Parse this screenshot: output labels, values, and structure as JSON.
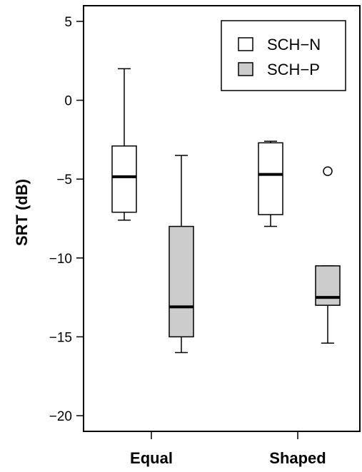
{
  "chart_data": {
    "type": "box",
    "categories": [
      "Equal",
      "Shaped"
    ],
    "ylabel": "SRT (dB)",
    "xlabel": "",
    "title": "",
    "ylim": [
      -21,
      6
    ],
    "yticks": [
      5,
      0,
      -5,
      -10,
      -15,
      -20
    ],
    "ytick_labels": [
      "5",
      "0",
      "−5",
      "−10",
      "−15",
      "−20"
    ],
    "legend": {
      "placement": "top-right"
    },
    "series": [
      {
        "name": "SCH−N",
        "fill": "#ffffff",
        "boxes": [
          {
            "category": "Equal",
            "whisker_low": -7.6,
            "q1": -7.1,
            "median": -4.85,
            "q3": -2.9,
            "whisker_high": 2.0,
            "outliers": []
          },
          {
            "category": "Shaped",
            "whisker_low": -8.0,
            "q1": -7.25,
            "median": -4.7,
            "q3": -2.7,
            "whisker_high": -2.6,
            "outliers": []
          }
        ]
      },
      {
        "name": "SCH−P",
        "fill": "#cccccc",
        "boxes": [
          {
            "category": "Equal",
            "whisker_low": -16.0,
            "q1": -15.0,
            "median": -13.1,
            "q3": -8.0,
            "whisker_high": -3.5,
            "outliers": []
          },
          {
            "category": "Shaped",
            "whisker_low": -15.4,
            "q1": -13.0,
            "median": -12.5,
            "q3": -10.5,
            "whisker_high": -10.5,
            "outliers": [
              -4.5
            ]
          }
        ]
      }
    ]
  }
}
